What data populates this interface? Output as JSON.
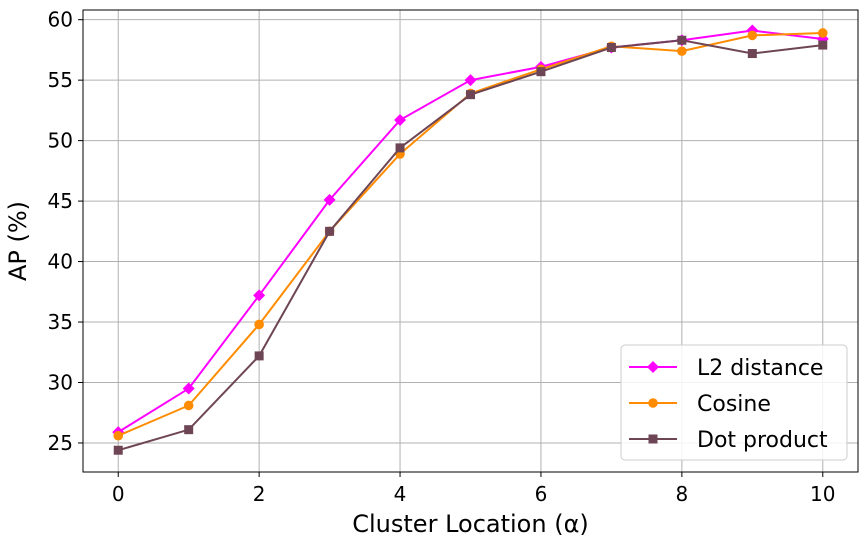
{
  "chart_data": {
    "type": "line",
    "title": "",
    "xlabel": "Cluster Location (α)",
    "ylabel": "AP (%)",
    "x": [
      0,
      1,
      2,
      3,
      4,
      5,
      6,
      7,
      8,
      9,
      10
    ],
    "xlim": [
      -0.5,
      10.5
    ],
    "ylim": [
      22.6,
      60.8
    ],
    "xticks": [
      0,
      2,
      4,
      6,
      8,
      10
    ],
    "yticks": [
      25,
      30,
      35,
      40,
      45,
      50,
      55,
      60
    ],
    "grid": true,
    "legend_position": "bottom-right",
    "series": [
      {
        "name": "L2 distance",
        "color": "#ff00ff",
        "marker": "diamond",
        "values": [
          25.9,
          29.5,
          37.2,
          45.1,
          51.7,
          55.0,
          56.1,
          57.7,
          58.3,
          59.1,
          58.4
        ]
      },
      {
        "name": "Cosine",
        "color": "#ff8c00",
        "marker": "circle",
        "values": [
          25.6,
          28.1,
          34.8,
          42.5,
          48.9,
          53.9,
          55.9,
          57.8,
          57.4,
          58.7,
          58.9
        ]
      },
      {
        "name": "Dot product",
        "color": "#6e4555",
        "marker": "square",
        "values": [
          24.4,
          26.1,
          32.2,
          42.5,
          49.4,
          53.8,
          55.7,
          57.7,
          58.3,
          57.2,
          57.9
        ]
      }
    ]
  }
}
